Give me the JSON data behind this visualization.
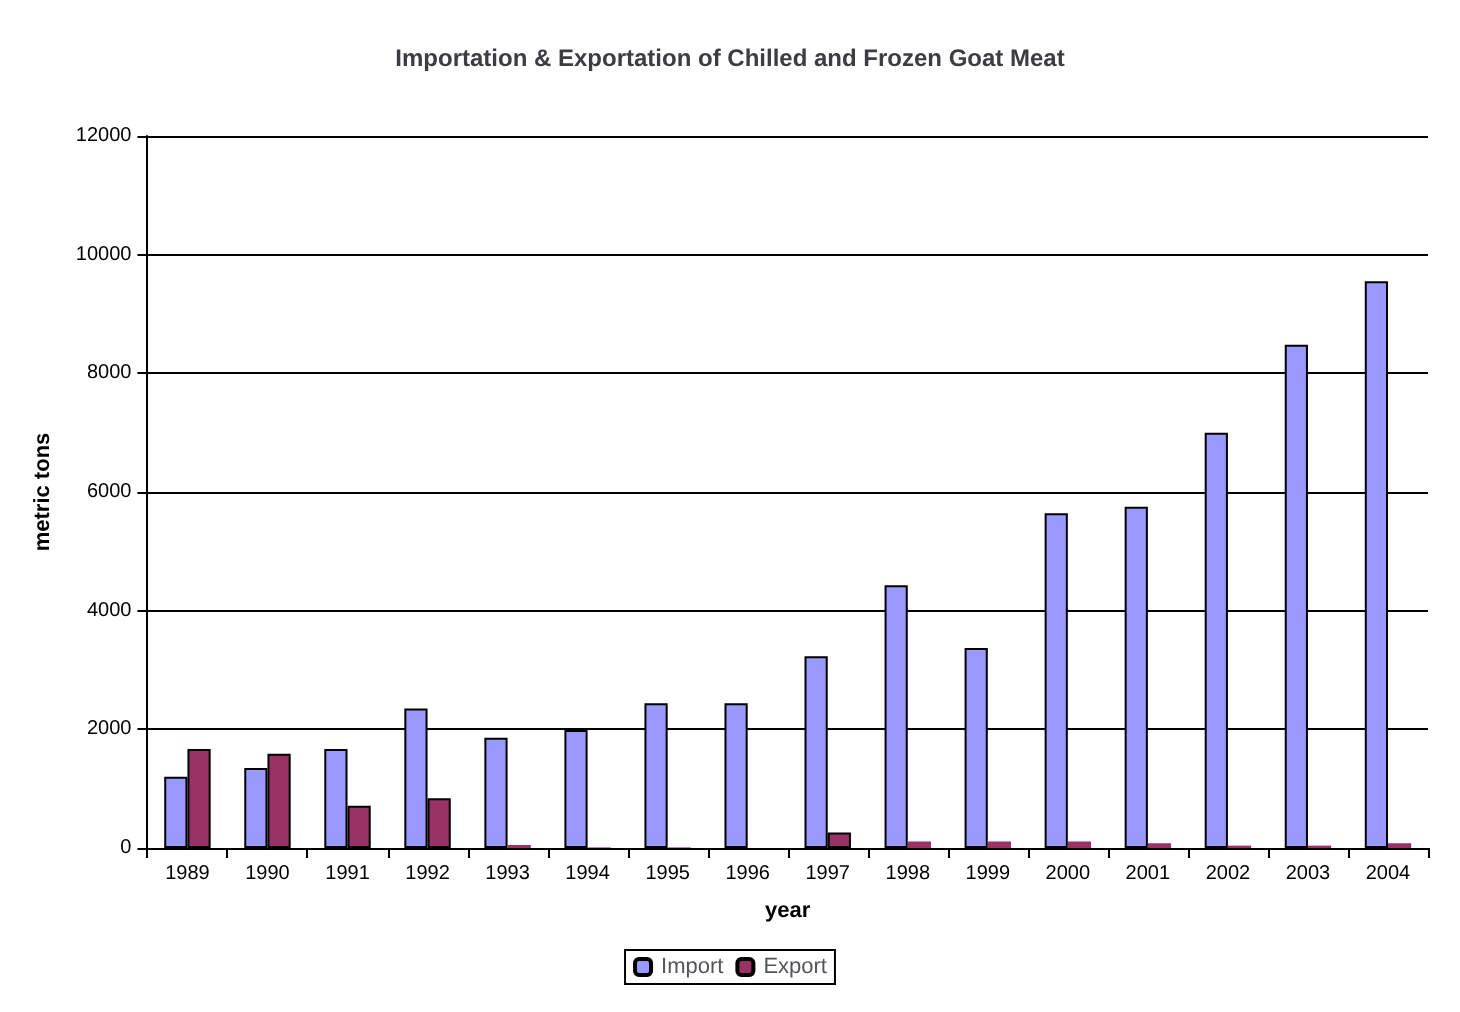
{
  "chart_data": {
    "type": "bar",
    "title": "Importation & Exportation of Chilled and Frozen Goat Meat",
    "xlabel": "year",
    "ylabel": "metric tons",
    "categories": [
      "1989",
      "1990",
      "1991",
      "1992",
      "1993",
      "1994",
      "1995",
      "1996",
      "1997",
      "1998",
      "1999",
      "2000",
      "2001",
      "2002",
      "2003",
      "2004"
    ],
    "series": [
      {
        "name": "Import",
        "color": "#9999ff",
        "values": [
          1200,
          1350,
          1670,
          2350,
          1860,
          1990,
          2440,
          2440,
          3230,
          4430,
          3370,
          5640,
          5750,
          7000,
          8480,
          9550
        ]
      },
      {
        "name": "Export",
        "color": "#993366",
        "values": [
          1670,
          1590,
          710,
          840,
          50,
          10,
          10,
          0,
          260,
          110,
          110,
          110,
          80,
          40,
          40,
          80
        ]
      }
    ],
    "ylim": [
      0,
      12000
    ],
    "yticks": [
      0,
      2000,
      4000,
      6000,
      8000,
      10000,
      12000
    ],
    "grid": "y",
    "legend": "bottom"
  }
}
